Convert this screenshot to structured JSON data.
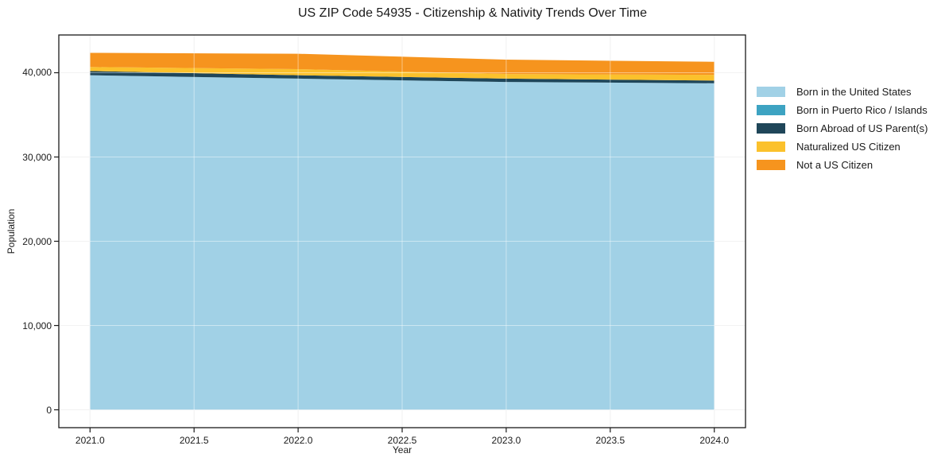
{
  "chart_data": {
    "type": "area",
    "stacked": true,
    "title": "US ZIP Code 54935 - Citizenship & Nativity Trends Over Time",
    "xlabel": "Year",
    "ylabel": "Population",
    "x": [
      2021,
      2022,
      2023,
      2024
    ],
    "series": [
      {
        "name": "Born in the United States",
        "color": "#a1d1e6",
        "values": [
          39700,
          39300,
          38900,
          38750
        ]
      },
      {
        "name": "Born in Puerto Rico / Islands",
        "color": "#3da3c2",
        "values": [
          0,
          0,
          0,
          0
        ]
      },
      {
        "name": "Born Abroad of US Parent(s)",
        "color": "#1f4659",
        "values": [
          500,
          400,
          400,
          320
        ]
      },
      {
        "name": "Naturalized US Citizen",
        "color": "#fbc12c",
        "values": [
          480,
          720,
          550,
          680
        ]
      },
      {
        "name": "Not a US Citizen",
        "color": "#f6941e",
        "values": [
          1680,
          1830,
          1700,
          1550
        ]
      }
    ],
    "xticks": {
      "values": [
        2021.0,
        2021.5,
        2022.0,
        2022.5,
        2023.0,
        2023.5,
        2024.0
      ],
      "labels": [
        "2021.0",
        "2021.5",
        "2022.0",
        "2022.5",
        "2023.0",
        "2023.5",
        "2024.0"
      ]
    },
    "yticks": {
      "values": [
        0,
        10000,
        20000,
        30000,
        40000
      ],
      "labels": [
        "0",
        "10,000",
        "20,000",
        "30,000",
        "40,000"
      ]
    },
    "xlim": [
      2020.85,
      2024.15
    ],
    "ylim": [
      -2120,
      44480
    ],
    "grid": true,
    "legend_position": "right",
    "colors": {
      "spine": "#1a1a1a",
      "gridline": "#e8e8e8",
      "background": "#ffffff"
    }
  }
}
